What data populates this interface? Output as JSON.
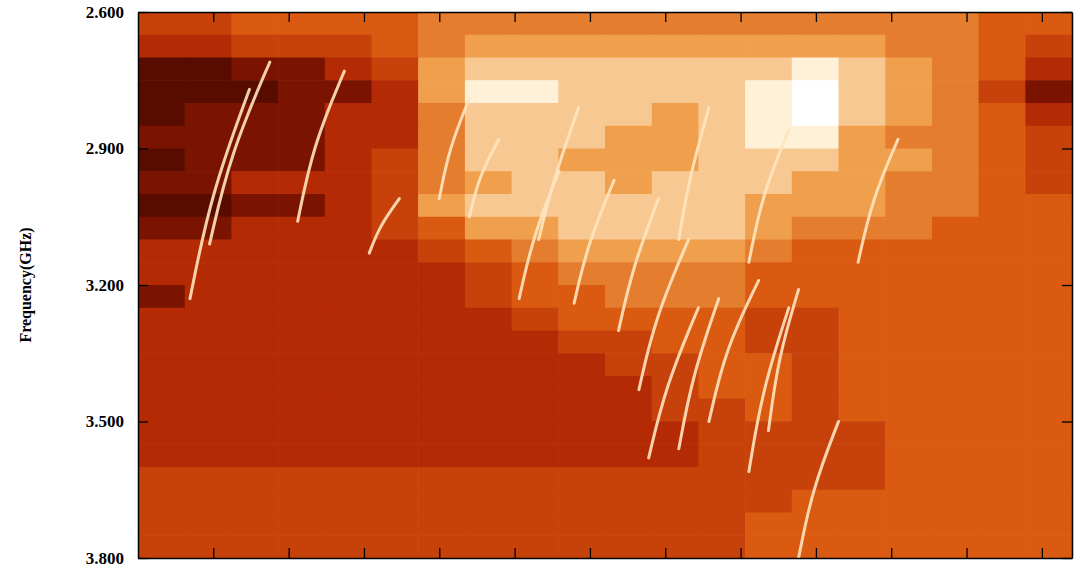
{
  "chart_data": {
    "type": "heatmap",
    "y_label": "Frequency(GHz)",
    "xlim": [
      0,
      12.4
    ],
    "xticks": [
      1,
      2,
      3,
      4,
      5,
      6,
      7,
      8,
      9,
      10,
      11,
      12
    ],
    "ylim": [
      2.6,
      3.8
    ],
    "yticks": [
      {
        "value": 2.6,
        "label": "2.600"
      },
      {
        "value": 2.9,
        "label": "2.900"
      },
      {
        "value": 3.2,
        "label": "3.200"
      },
      {
        "value": 3.5,
        "label": "3.500"
      },
      {
        "value": 3.8,
        "label": "3.800"
      }
    ],
    "tick_labels": "y",
    "zlim": [
      0,
      10
    ],
    "x_bins": [
      0,
      0.62,
      1.24,
      1.86,
      2.48,
      3.1,
      3.72,
      4.34,
      4.96,
      5.58,
      6.2,
      6.82,
      7.44,
      8.06,
      8.68,
      9.3,
      9.92,
      10.54,
      11.16,
      11.78,
      12.4
    ],
    "y_bins": [
      2.6,
      2.65,
      2.7,
      2.75,
      2.8,
      2.85,
      2.9,
      2.95,
      3.0,
      3.05,
      3.1,
      3.15,
      3.2,
      3.25,
      3.3,
      3.35,
      3.4,
      3.45,
      3.5,
      3.55,
      3.6,
      3.65,
      3.7,
      3.75,
      3.8
    ],
    "cells": [
      [
        4,
        4,
        5,
        5,
        5,
        5,
        6,
        6,
        6,
        6,
        6,
        6,
        6,
        6,
        6,
        6,
        6,
        6,
        5,
        5
      ],
      [
        3,
        3,
        4,
        4,
        4,
        5,
        6,
        7,
        7,
        7,
        7,
        7,
        7,
        7,
        7,
        7,
        6,
        6,
        5,
        4
      ],
      [
        1,
        1,
        2,
        2,
        3,
        4,
        7,
        8,
        8,
        8,
        8,
        8,
        8,
        8,
        9,
        8,
        7,
        6,
        5,
        3
      ],
      [
        1,
        1,
        1,
        2,
        2,
        3,
        7,
        9,
        9,
        8,
        8,
        8,
        8,
        9,
        10,
        8,
        7,
        6,
        4,
        2
      ],
      [
        1,
        2,
        2,
        2,
        3,
        3,
        6,
        8,
        8,
        8,
        8,
        7,
        8,
        9,
        10,
        8,
        7,
        6,
        5,
        3
      ],
      [
        2,
        2,
        2,
        2,
        3,
        3,
        6,
        8,
        8,
        8,
        7,
        7,
        8,
        9,
        9,
        7,
        6,
        6,
        5,
        4
      ],
      [
        1,
        2,
        2,
        2,
        3,
        4,
        6,
        8,
        8,
        7,
        7,
        7,
        8,
        8,
        8,
        7,
        7,
        6,
        5,
        4
      ],
      [
        2,
        2,
        3,
        3,
        3,
        4,
        6,
        7,
        8,
        8,
        7,
        8,
        8,
        8,
        7,
        7,
        6,
        6,
        5,
        4
      ],
      [
        1,
        1,
        2,
        2,
        3,
        4,
        7,
        8,
        8,
        8,
        8,
        8,
        8,
        7,
        7,
        7,
        6,
        6,
        5,
        5
      ],
      [
        2,
        2,
        3,
        3,
        3,
        4,
        5,
        7,
        7,
        8,
        8,
        8,
        8,
        7,
        6,
        6,
        6,
        5,
        5,
        5
      ],
      [
        3,
        3,
        3,
        3,
        3,
        3,
        4,
        5,
        6,
        7,
        7,
        7,
        7,
        6,
        5,
        5,
        5,
        5,
        5,
        5
      ],
      [
        3,
        3,
        3,
        3,
        3,
        3,
        3,
        4,
        5,
        6,
        6,
        6,
        6,
        5,
        5,
        5,
        5,
        5,
        5,
        5
      ],
      [
        2,
        3,
        3,
        3,
        3,
        3,
        3,
        4,
        5,
        5,
        6,
        6,
        6,
        5,
        5,
        5,
        5,
        5,
        5,
        5
      ],
      [
        3,
        3,
        3,
        3,
        3,
        3,
        3,
        3,
        4,
        5,
        5,
        5,
        5,
        4,
        4,
        5,
        5,
        5,
        5,
        5
      ],
      [
        3,
        3,
        3,
        3,
        3,
        3,
        3,
        3,
        3,
        4,
        4,
        5,
        5,
        4,
        4,
        5,
        5,
        5,
        5,
        5
      ],
      [
        3,
        3,
        3,
        3,
        3,
        3,
        3,
        3,
        3,
        3,
        4,
        4,
        5,
        5,
        4,
        5,
        5,
        5,
        5,
        5
      ],
      [
        3,
        3,
        3,
        3,
        3,
        3,
        3,
        3,
        3,
        3,
        3,
        4,
        5,
        5,
        4,
        5,
        5,
        5,
        5,
        5
      ],
      [
        3,
        3,
        3,
        3,
        3,
        3,
        3,
        3,
        3,
        3,
        3,
        4,
        4,
        5,
        4,
        5,
        5,
        5,
        5,
        5
      ],
      [
        3,
        3,
        3,
        3,
        3,
        3,
        3,
        3,
        3,
        3,
        3,
        3,
        4,
        4,
        4,
        4,
        5,
        5,
        5,
        5
      ],
      [
        3,
        3,
        3,
        3,
        3,
        3,
        3,
        3,
        3,
        3,
        3,
        3,
        4,
        4,
        4,
        4,
        5,
        5,
        5,
        5
      ],
      [
        4,
        4,
        4,
        4,
        4,
        4,
        4,
        4,
        4,
        4,
        4,
        4,
        4,
        4,
        4,
        4,
        5,
        5,
        5,
        5
      ],
      [
        4,
        4,
        4,
        4,
        4,
        4,
        4,
        4,
        4,
        4,
        4,
        4,
        4,
        4,
        5,
        5,
        5,
        5,
        5,
        5
      ],
      [
        4,
        4,
        4,
        4,
        4,
        4,
        4,
        4,
        4,
        4,
        4,
        4,
        4,
        5,
        5,
        5,
        5,
        5,
        5,
        5
      ],
      [
        4,
        4,
        4,
        4,
        4,
        4,
        4,
        4,
        4,
        4,
        4,
        4,
        4,
        5,
        5,
        5,
        5,
        5,
        5,
        5
      ]
    ],
    "fibers": {
      "color": "#ffe4bf",
      "lines": [
        {
          "x": [
            0.69,
            0.97,
            1.48
          ],
          "y": [
            3.23,
            3.0,
            2.77
          ]
        },
        {
          "x": [
            0.95,
            1.23,
            1.75
          ],
          "y": [
            3.11,
            2.91,
            2.71
          ]
        },
        {
          "x": [
            2.12,
            2.33,
            2.74
          ],
          "y": [
            3.06,
            2.89,
            2.73
          ]
        },
        {
          "x": [
            3.07,
            3.21,
            3.47
          ],
          "y": [
            3.13,
            3.07,
            3.01
          ]
        },
        {
          "x": [
            5.06,
            5.25,
            5.59
          ],
          "y": [
            3.23,
            3.09,
            2.95
          ]
        },
        {
          "x": [
            5.79,
            5.97,
            6.32
          ],
          "y": [
            3.24,
            3.11,
            2.97
          ]
        },
        {
          "x": [
            6.38,
            6.57,
            6.91
          ],
          "y": [
            3.3,
            3.16,
            3.01
          ]
        },
        {
          "x": [
            6.65,
            6.87,
            7.31
          ],
          "y": [
            3.43,
            3.27,
            3.1
          ]
        },
        {
          "x": [
            6.78,
            7.01,
            7.44
          ],
          "y": [
            3.58,
            3.42,
            3.25
          ]
        },
        {
          "x": [
            7.18,
            7.36,
            7.71
          ],
          "y": [
            3.56,
            3.4,
            3.23
          ]
        },
        {
          "x": [
            7.58,
            7.8,
            8.24
          ],
          "y": [
            3.5,
            3.34,
            3.19
          ]
        },
        {
          "x": [
            8.11,
            8.29,
            8.64
          ],
          "y": [
            3.61,
            3.43,
            3.25
          ]
        },
        {
          "x": [
            8.37,
            8.5,
            8.77
          ],
          "y": [
            3.52,
            3.36,
            3.21
          ]
        },
        {
          "x": [
            8.77,
            8.95,
            9.3
          ],
          "y": [
            3.8,
            3.65,
            3.5
          ]
        },
        {
          "x": [
            5.32,
            5.51,
            5.85
          ],
          "y": [
            3.1,
            2.97,
            2.81
          ]
        },
        {
          "x": [
            4.4,
            4.53,
            4.79
          ],
          "y": [
            3.05,
            2.96,
            2.88
          ]
        },
        {
          "x": [
            4.0,
            4.13,
            4.4
          ],
          "y": [
            3.01,
            2.9,
            2.79
          ]
        },
        {
          "x": [
            7.18,
            7.31,
            7.58
          ],
          "y": [
            3.1,
            2.97,
            2.81
          ]
        },
        {
          "x": [
            8.11,
            8.29,
            8.64
          ],
          "y": [
            3.15,
            3.0,
            2.86
          ]
        },
        {
          "x": [
            9.56,
            9.75,
            10.09
          ],
          "y": [
            3.15,
            3.01,
            2.88
          ]
        }
      ]
    }
  }
}
